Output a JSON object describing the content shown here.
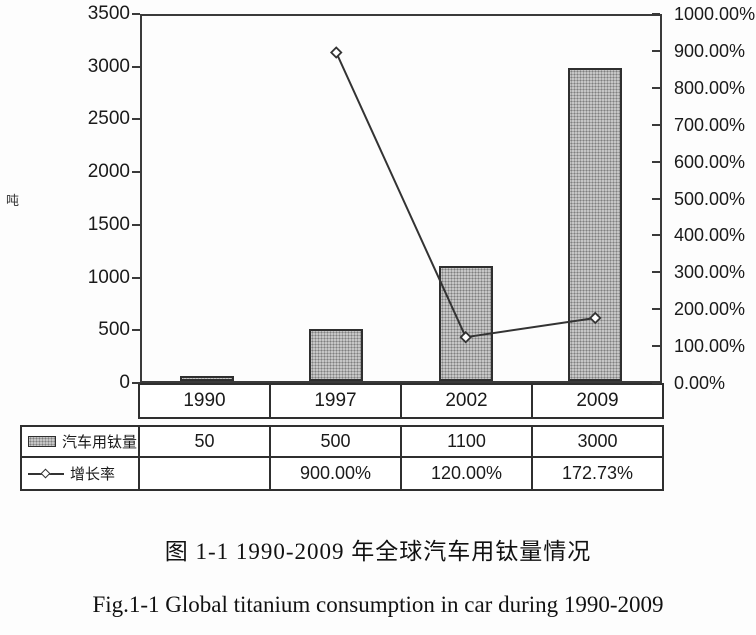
{
  "figure": {
    "caption_zh": "图 1-1 1990-2009 年全球汽车用钛量情况",
    "caption_en": "Fig.1-1 Global titanium consumption in car during 1990-2009"
  },
  "chart_data": {
    "type": "bar+line combo with data table",
    "categories": [
      "1990",
      "1997",
      "2002",
      "2009"
    ],
    "series": [
      {
        "name": "汽车用钛量",
        "type": "bar",
        "axis": "left",
        "values": [
          50,
          500,
          1100,
          3000
        ],
        "value_labels": [
          "50",
          "500",
          "1100",
          "3000"
        ]
      },
      {
        "name": "增长率",
        "type": "line",
        "axis": "right",
        "values": [
          null,
          900,
          120,
          172.73
        ],
        "value_labels": [
          "",
          "900.00%",
          "120.00%",
          "172.73%"
        ]
      }
    ],
    "left_axis": {
      "label": "吨",
      "min": 0,
      "max": 3500,
      "step": 500,
      "ticks": [
        "3500",
        "3000",
        "2500",
        "2000",
        "1500",
        "1000",
        "500",
        "0"
      ]
    },
    "right_axis": {
      "min": 0,
      "max": 1000,
      "step": 100,
      "ticks": [
        "1000.00%",
        "900.00%",
        "800.00%",
        "700.00%",
        "600.00%",
        "500.00%",
        "400.00%",
        "300.00%",
        "200.00%",
        "100.00%",
        "0.00%"
      ]
    },
    "grid": false,
    "legend_position": "table-left"
  },
  "table": {
    "rows": [
      {
        "legend": "汽车用钛量",
        "marker": "bar-swatch",
        "values": [
          "50",
          "500",
          "1100",
          "3000"
        ]
      },
      {
        "legend": "增长率",
        "marker": "line-marker",
        "values": [
          "",
          "900.00%",
          "120.00%",
          "172.73%"
        ]
      }
    ]
  },
  "colors": {
    "bar_fill": "#c6c6c6",
    "bar_dots": "#7f7f7f",
    "bar_border": "#2f2f2f",
    "line": "#333333",
    "marker_fill": "#ffffff",
    "axis": "#3a3a3a",
    "text": "#1a1a1a",
    "background": "#fdfdfd"
  }
}
